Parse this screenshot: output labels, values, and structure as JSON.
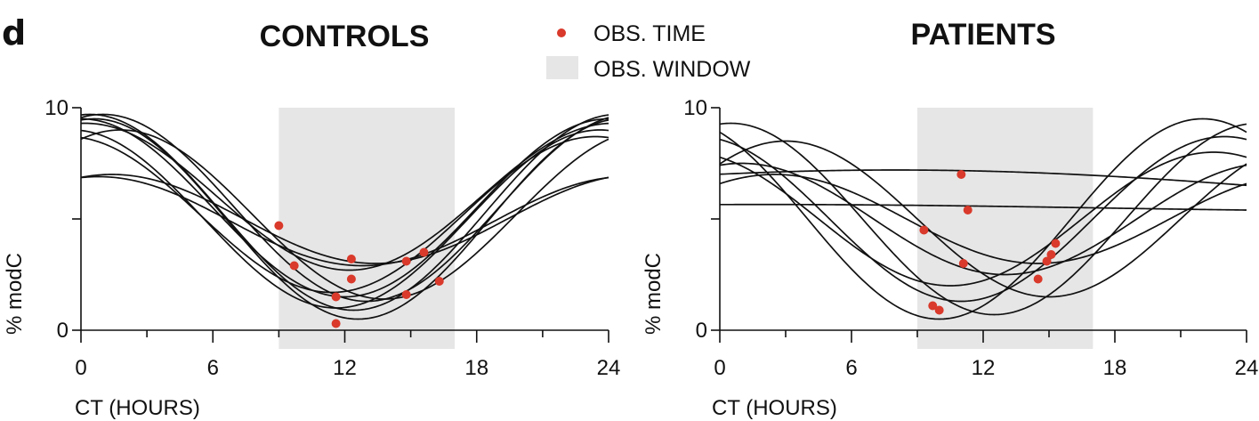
{
  "panel_label": "d",
  "legend": {
    "point_label": "OBS. TIME",
    "window_label": "OBS. WINDOW",
    "point_color": "#d93a2b",
    "window_color": "#e6e6e6"
  },
  "chart_data": [
    {
      "type": "line",
      "title": "CONTROLS",
      "xlabel": "CT (HOURS)",
      "ylabel": "% modC",
      "xlim": [
        0,
        24
      ],
      "ylim": [
        0,
        10
      ],
      "xticks": [
        0,
        6,
        12,
        18,
        24
      ],
      "yticks": [
        0,
        10
      ],
      "obs_window": [
        9,
        17
      ],
      "curves": [
        {
          "mesor": 5.5,
          "amplitude": 4.2,
          "acrophase": 1.0
        },
        {
          "mesor": 5.3,
          "amplitude": 4.4,
          "acrophase": 0.4
        },
        {
          "mesor": 5.5,
          "amplitude": 4.0,
          "acrophase": 0.0
        },
        {
          "mesor": 5.0,
          "amplitude": 4.0,
          "acrophase": 23.6
        },
        {
          "mesor": 5.0,
          "amplitude": 4.5,
          "acrophase": 0.6
        },
        {
          "mesor": 6.0,
          "amplitude": 3.3,
          "acrophase": 0.2
        },
        {
          "mesor": 5.2,
          "amplitude": 3.5,
          "acrophase": 23.4
        },
        {
          "mesor": 5.0,
          "amplitude": 2.0,
          "acrophase": 1.4
        },
        {
          "mesor": 4.9,
          "amplitude": 2.0,
          "acrophase": 0.8
        },
        {
          "mesor": 5.2,
          "amplitude": 3.8,
          "acrophase": 1.8
        }
      ],
      "obs_points": [
        {
          "x": 9.0,
          "y": 4.7
        },
        {
          "x": 9.7,
          "y": 2.9
        },
        {
          "x": 11.6,
          "y": 0.3
        },
        {
          "x": 11.6,
          "y": 1.5
        },
        {
          "x": 12.3,
          "y": 3.2
        },
        {
          "x": 12.3,
          "y": 2.3
        },
        {
          "x": 14.8,
          "y": 3.1
        },
        {
          "x": 14.8,
          "y": 1.6
        },
        {
          "x": 15.6,
          "y": 3.5
        },
        {
          "x": 16.3,
          "y": 2.2
        }
      ]
    },
    {
      "type": "line",
      "title": "PATIENTS",
      "xlabel": "CT (HOURS)",
      "ylabel": "% modC",
      "xlim": [
        0,
        24
      ],
      "ylim": [
        0,
        10
      ],
      "xticks": [
        0,
        6,
        12,
        18,
        24
      ],
      "yticks": [
        0,
        10
      ],
      "obs_window": [
        9,
        17
      ],
      "curves": [
        {
          "mesor": 6.2,
          "amplitude": 1.0,
          "acrophase": 8.0,
          "period": 80
        },
        {
          "mesor": 5.5,
          "amplitude": 0.15,
          "acrophase": 2.0,
          "period": 60
        },
        {
          "mesor": 5.0,
          "amplitude": 4.5,
          "acrophase": 22.0
        },
        {
          "mesor": 5.0,
          "amplitude": 4.3,
          "acrophase": 0.5
        },
        {
          "mesor": 5.0,
          "amplitude": 3.5,
          "acrophase": 3.0
        },
        {
          "mesor": 5.0,
          "amplitude": 3.0,
          "acrophase": 22.5
        },
        {
          "mesor": 5.0,
          "amplitude": 2.0,
          "acrophase": 2.5
        },
        {
          "mesor": 5.0,
          "amplitude": 3.7,
          "acrophase": 23.0
        },
        {
          "mesor": 5.0,
          "amplitude": 2.5,
          "acrophase": 1.0
        }
      ],
      "obs_points": [
        {
          "x": 9.3,
          "y": 4.5
        },
        {
          "x": 9.7,
          "y": 1.1
        },
        {
          "x": 10.0,
          "y": 0.9
        },
        {
          "x": 11.0,
          "y": 7.0
        },
        {
          "x": 11.1,
          "y": 3.0
        },
        {
          "x": 11.3,
          "y": 5.4
        },
        {
          "x": 14.5,
          "y": 2.3
        },
        {
          "x": 14.9,
          "y": 3.1
        },
        {
          "x": 15.1,
          "y": 3.4
        },
        {
          "x": 15.3,
          "y": 3.9
        }
      ]
    }
  ]
}
